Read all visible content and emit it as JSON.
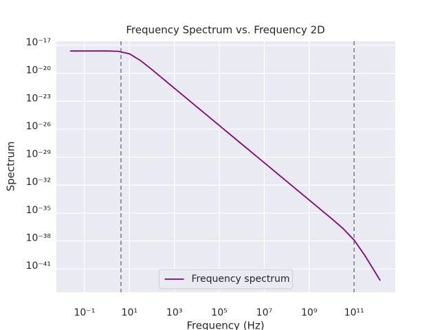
{
  "chart_data": {
    "type": "line",
    "title": "Frequency Spectrum vs. Frequency 2D",
    "xlabel": "Frequency (Hz)",
    "ylabel": "Spectrum",
    "xscale": "log",
    "yscale": "log",
    "grid": true,
    "legend": "lower center",
    "x": [
      0.023,
      0.1,
      1,
      3.16,
      10,
      31.6,
      100,
      1000,
      10000,
      100000,
      1000000,
      10000000,
      100000000,
      1000000000,
      10000000000,
      31600000000,
      100000000000,
      316000000000,
      1000000000000,
      1450000000000
    ],
    "series": [
      {
        "name": "Frequency spectrum",
        "color": "#800080",
        "values": [
          2.5e-18,
          2.5e-18,
          2.48e-18,
          2.28e-18,
          1.25e-18,
          2.27e-19,
          2.5e-20,
          2.5e-22,
          2.5e-24,
          2.5e-26,
          2.5e-28,
          2.5e-30,
          2.5e-32,
          2.5e-34,
          2.48e-36,
          2.28e-37,
          1.25e-38,
          2.28e-40,
          2.5e-42,
          5.7e-43
        ]
      }
    ],
    "vlines": [
      4.2,
      100000000000
    ],
    "vline_color": "#808080",
    "xlim": [
      0.0056,
      6800000000000.0
    ],
    "ylim": [
      3.2e-44,
      2.75e-17
    ],
    "xticks": [
      {
        "value": 0.1,
        "label": "10⁻¹"
      },
      {
        "value": 10,
        "label": "10¹"
      },
      {
        "value": 1000,
        "label": "10³"
      },
      {
        "value": 100000,
        "label": "10⁵"
      },
      {
        "value": 10000000,
        "label": "10⁷"
      },
      {
        "value": 1000000000,
        "label": "10⁹"
      },
      {
        "value": 100000000000,
        "label": "10¹¹"
      }
    ],
    "yticks": [
      {
        "value": 1e-17,
        "label": "10⁻¹⁷"
      },
      {
        "value": 1e-20,
        "label": "10⁻²⁰"
      },
      {
        "value": 1e-23,
        "label": "10⁻²³"
      },
      {
        "value": 1e-26,
        "label": "10⁻²⁶"
      },
      {
        "value": 1e-29,
        "label": "10⁻²⁹"
      },
      {
        "value": 1e-32,
        "label": "10⁻³²"
      },
      {
        "value": 1e-35,
        "label": "10⁻³⁵"
      },
      {
        "value": 1e-38,
        "label": "10⁻³⁸"
      },
      {
        "value": 1e-41,
        "label": "10⁻⁴¹"
      }
    ]
  }
}
